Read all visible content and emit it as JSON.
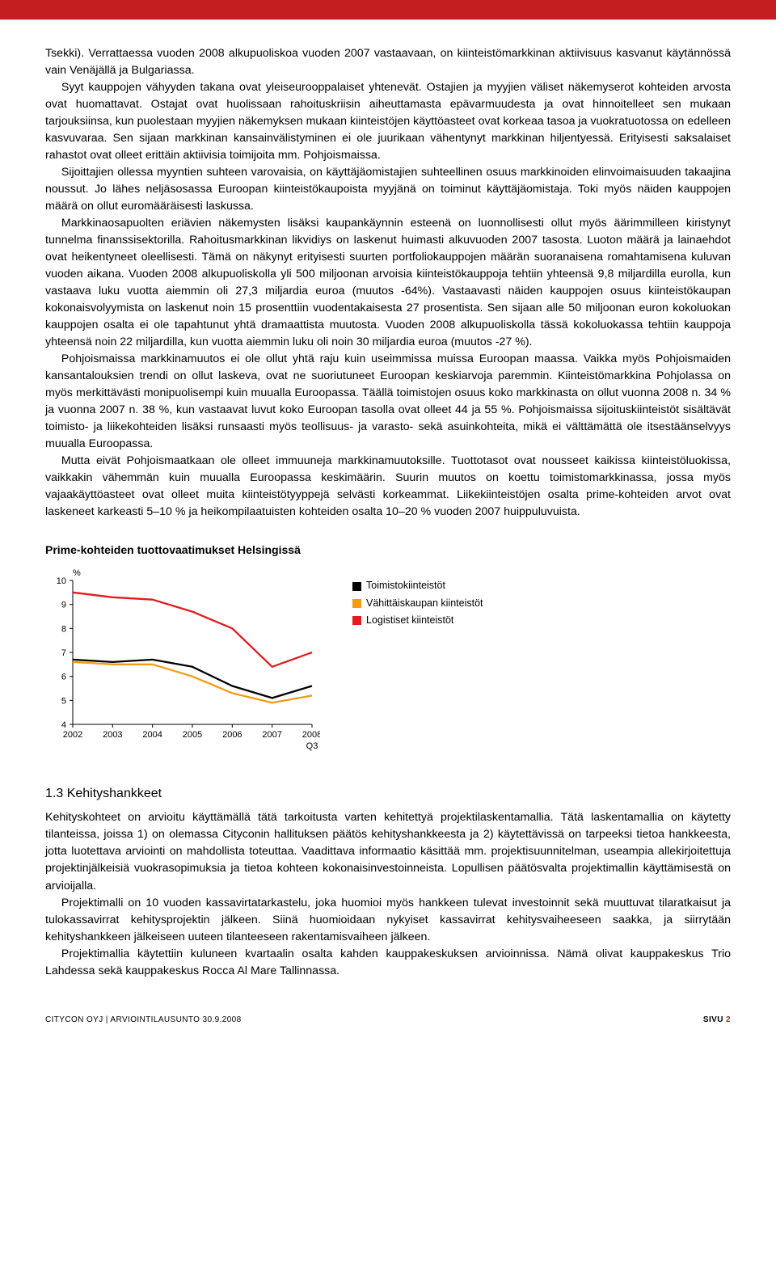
{
  "accent_color": "#c41e1e",
  "paragraphs": [
    "Tsekki). Verrattaessa vuoden 2008 alkupuoliskoa vuoden 2007 vastaavaan, on kiinteistömarkkinan aktiivisuus kasvanut käytännössä vain Venäjällä ja Bulgariassa.",
    "Syyt kauppojen vähyyden takana ovat yleiseurooppalaiset yhtenevät. Ostajien ja myyjien väliset näkemyserot kohteiden arvosta ovat huomattavat. Ostajat ovat huolissaan rahoituskriisin aiheuttamasta epävarmuudesta ja ovat hinnoitelleet sen mukaan tarjouksiinsa, kun puolestaan myyjien näkemyksen mukaan kiinteistöjen käyttöasteet ovat korkeaa tasoa ja vuokratuotossa on edelleen kasvuvaraa. Sen sijaan markkinan kansainvälistyminen ei ole juurikaan vähentynyt markkinan hiljentyessä. Erityisesti saksalaiset rahastot ovat olleet erittäin aktiivisia toimijoita mm. Pohjoismaissa.",
    "Sijoittajien ollessa myyntien suhteen varovaisia, on käyttäjäomistajien suhteellinen osuus markkinoiden elinvoimaisuuden takaajina noussut. Jo lähes neljäsosassa Euroopan kiinteistökaupoista myyjänä on toiminut käyttäjäomistaja. Toki myös näiden kauppojen määrä on ollut euromääräisesti laskussa.",
    "Markkinaosapuolten eriävien näkemysten lisäksi kaupankäynnin esteenä on luonnollisesti ollut myös äärimmilleen kiristynyt tunnelma finanssisektorilla. Rahoitusmarkkinan likvidiys on laskenut huimasti alkuvuoden 2007 tasosta. Luoton määrä ja lainaehdot ovat heikentyneet oleellisesti. Tämä on näkynyt erityisesti suurten portfoliokauppojen määrän suoranaisena romahtamisena kuluvan vuoden aikana. Vuoden 2008 alkupuoliskolla yli 500 miljoonan arvoisia kiinteistökauppoja tehtiin yhteensä 9,8 miljardilla eurolla, kun vastaava luku vuotta aiemmin oli 27,3 miljardia euroa (muutos -64%). Vastaavasti näiden kauppojen osuus kiinteistökaupan kokonaisvolyymista on laskenut noin 15 prosenttiin vuodentakaisesta 27 prosentista. Sen sijaan alle 50 miljoonan euron kokoluokan kauppojen osalta ei ole tapahtunut yhtä dramaattista muutosta. Vuoden 2008 alkupuoliskolla tässä kokoluokassa tehtiin kauppoja yhteensä noin 22 miljardilla, kun vuotta aiemmin luku oli noin 30 miljardia euroa (muutos -27 %).",
    "Pohjoismaissa markkinamuutos ei ole ollut yhtä raju kuin useimmissa muissa Euroopan maassa. Vaikka myös Pohjoismaiden kansantalouksien trendi on ollut laskeva, ovat ne suoriutuneet Euroopan keskiarvoja paremmin. Kiinteistömarkkina Pohjolassa on myös merkittävästi monipuolisempi kuin muualla Euroopassa. Täällä toimistojen osuus koko markkinasta on ollut vuonna 2008 n. 34 % ja vuonna 2007 n. 38 %, kun vastaavat luvut koko Euroopan tasolla ovat olleet 44 ja 55 %. Pohjoismaissa sijoituskiinteistöt sisältävät toimisto- ja liikekohteiden lisäksi runsaasti myös teollisuus- ja varasto- sekä asuinkohteita, mikä ei välttämättä ole itsestäänselvyys muualla Euroopassa.",
    "Mutta eivät Pohjoismaatkaan ole olleet immuuneja markkinamuutoksille. Tuottotasot ovat nousseet kaikissa kiinteistöluokissa, vaikkakin vähemmän kuin muualla Euroopassa keskimäärin. Suurin muutos on koettu toimistomarkkinassa, jossa myös vajaakäyttöasteet ovat olleet muita kiinteistötyyppejä selvästi korkeammat. Liikekiinteistöjen osalta prime-kohteiden arvot ovat laskeneet karkeasti 5–10 % ja heikompilaatuisten kohteiden osalta 10–20 % vuoden 2007 huippuluvuista."
  ],
  "chart": {
    "type": "line",
    "title": "Prime-kohteiden tuottovaatimukset Helsingissä",
    "y_unit": "%",
    "ylim": [
      4,
      10
    ],
    "ytick_step": 1,
    "categories": [
      "2002",
      "2003",
      "2004",
      "2005",
      "2006",
      "2007",
      "2008 Q3"
    ],
    "series": [
      {
        "name": "Toimistokiinteistöt",
        "color": "#000000",
        "values": [
          6.7,
          6.6,
          6.7,
          6.4,
          5.6,
          5.1,
          5.6
        ]
      },
      {
        "name": "Vähittäiskaupan kiinteistöt",
        "color": "#f39c12",
        "values": [
          6.6,
          6.5,
          6.5,
          6.0,
          5.3,
          4.9,
          5.2
        ]
      },
      {
        "name": "Logistiset kiinteistöt",
        "color": "#e41a1c",
        "values": [
          9.5,
          9.3,
          9.2,
          8.7,
          8.0,
          6.4,
          7.0
        ]
      }
    ],
    "line_width": 2.3,
    "background_color": "#ffffff",
    "axis_color": "#000000",
    "label_fontsize": 11
  },
  "section_1_3": {
    "heading": "1.3 Kehityshankkeet",
    "paragraphs": [
      "Kehityskohteet on arvioitu käyttämällä tätä tarkoitusta varten kehitettyä projektilaskentamallia. Tätä laskentamallia on käytetty tilanteissa, joissa 1) on olemassa Cityconin hallituksen päätös kehityshankkeesta ja 2) käytettävissä on tarpeeksi tietoa hankkeesta, jotta luotettava arviointi on mahdollista toteuttaa. Vaadittava informaatio käsittää mm. projektisuunnitelman, useampia allekirjoitettuja projektinjälkeisiä vuokrasopimuksia ja tietoa kohteen kokonaisinvestoinneista. Lopullisen päätösvalta projektimallin käyttämisestä on arvioijalla.",
      "Projektimalli on 10 vuoden kassavirtatarkastelu, joka huomioi myös hankkeen tulevat investoinnit sekä muuttuvat tilaratkaisut ja tulokassavirrat kehitysprojektin jälkeen. Siinä huomioidaan nykyiset kassavirrat kehitysvaiheeseen saakka, ja siirrytään kehityshankkeen jälkeiseen uuteen tilanteeseen rakentamisvaiheen jälkeen.",
      "Projektimallia käytettiin kuluneen kvartaalin osalta kahden kauppakeskuksen arvioinnissa. Nämä olivat kauppakeskus Trio Lahdessa sekä kauppakeskus Rocca Al Mare Tallinnassa."
    ]
  },
  "footer": {
    "left": "CITYCON OYJ | ARVIOINTILAUSUNTO 30.9.2008",
    "page_label": "SIVU",
    "page_num": "2"
  }
}
